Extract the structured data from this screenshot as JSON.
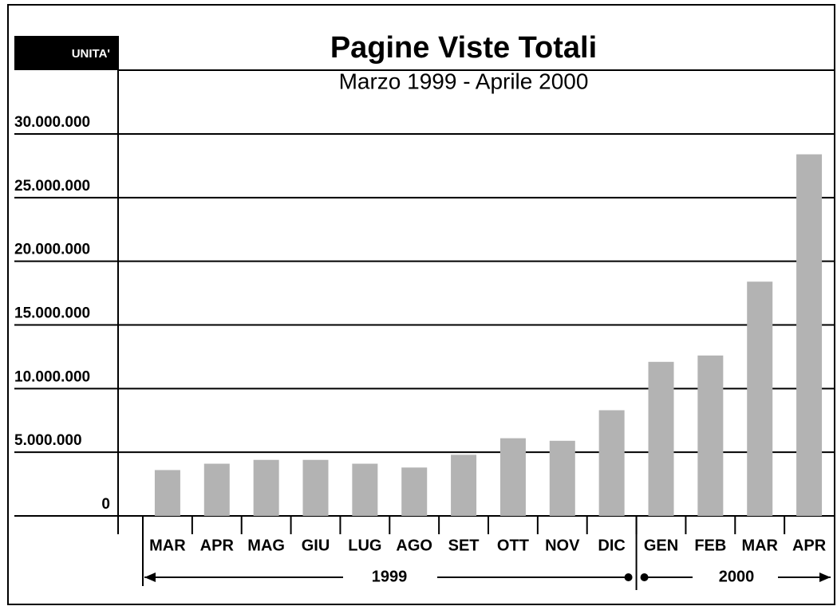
{
  "chart_data": {
    "type": "bar",
    "title": "Pagine Viste Totali",
    "subtitle": "Marzo 1999 - Aprile 2000",
    "ylabel": "UNITA'",
    "categories": [
      "MAR",
      "APR",
      "MAG",
      "GIU",
      "LUG",
      "AGO",
      "SET",
      "OTT",
      "NOV",
      "DIC",
      "GEN",
      "FEB",
      "MAR",
      "APR"
    ],
    "values": [
      3600000,
      4100000,
      4400000,
      4400000,
      4100000,
      3800000,
      4800000,
      6100000,
      5900000,
      8300000,
      12100000,
      12600000,
      18400000,
      28400000
    ],
    "color": "#b3b3b3",
    "groups": [
      "1999",
      "2000"
    ],
    "ylim": [
      0,
      30000000
    ],
    "yticks": [
      0,
      {
        "value": 5000000,
        "label": "5.000.000"
      },
      {
        "value": 10000000,
        "label": "10.000.000"
      },
      {
        "value": 15000000,
        "label": "15.000.000"
      },
      {
        "value": 20000000,
        "label": "20.000.000"
      },
      {
        "value": 25000000,
        "label": "25.000.000"
      },
      {
        "value": 30000000,
        "label": "30.000.000"
      }
    ],
    "grid": true
  }
}
